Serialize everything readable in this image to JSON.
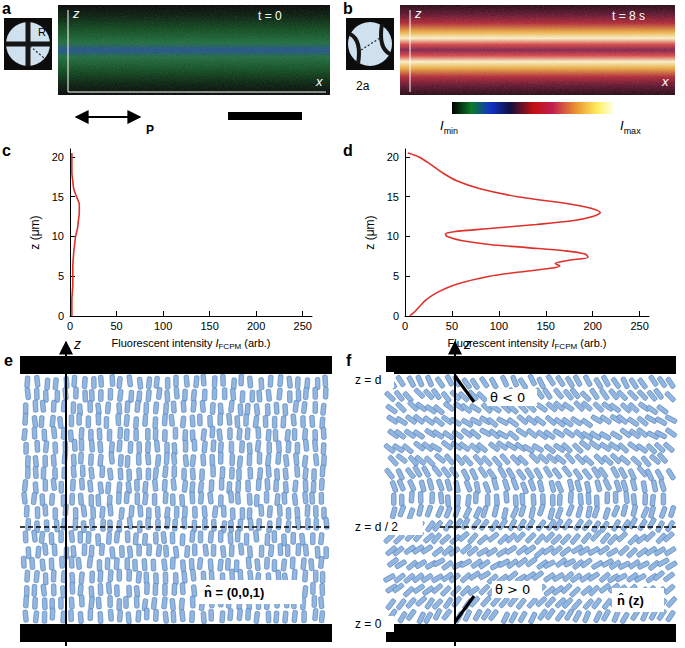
{
  "panels": {
    "a": {
      "label": "a",
      "axis_labels": {
        "vertical": "z",
        "horizontal": "x"
      },
      "time": "t = 0",
      "conoscope_label": "R",
      "polarizer_label": "P"
    },
    "b": {
      "label": "b",
      "axis_labels": {
        "vertical": "z",
        "horizontal": "x"
      },
      "time": "t = 8 s",
      "conoscope_label": "2a",
      "colorbar": {
        "min": {
          "symbol": "I",
          "sub": "min"
        },
        "max": {
          "symbol": "I",
          "sub": "max"
        }
      }
    },
    "e": {
      "label": "e",
      "axis_label": "z",
      "director_label": "n̂ = (0,0,1)"
    },
    "f": {
      "label": "f",
      "axis_label": "z",
      "level_labels": [
        "z = d",
        "z = d / 2",
        "z = 0"
      ],
      "angle_labels": [
        "θ < 0",
        "θ > 0"
      ],
      "director_label": "n̂ (z)"
    }
  },
  "chart_data": [
    {
      "type": "line",
      "label": "c",
      "xlabel": {
        "text": "Fluorescent intensity ",
        "symbol": "I",
        "sub": "FCPM",
        "unit": " (arb.)"
      },
      "ylabel": "z (μm)",
      "xlim": [
        0,
        260
      ],
      "xticks": [
        0,
        50,
        100,
        150,
        200,
        250
      ],
      "ylim": [
        0,
        21
      ],
      "yticks": [
        0,
        5,
        10,
        15,
        20
      ],
      "grid": false,
      "series": [
        {
          "color": "#e0302a",
          "x": [
            2,
            2,
            3,
            3,
            4,
            5,
            6,
            8,
            9,
            10,
            10,
            7,
            4,
            3,
            2,
            2,
            2
          ],
          "y": [
            0,
            2,
            4,
            6,
            8,
            9,
            10,
            11,
            12,
            13,
            14,
            15,
            16,
            17,
            18,
            20,
            20.5
          ]
        }
      ]
    },
    {
      "type": "line",
      "label": "d",
      "xlabel": {
        "text": "Fluorescent intensity ",
        "symbol": "I",
        "sub": "FCPM",
        "unit": " (arb.)"
      },
      "ylabel": "z (μm)",
      "xlim": [
        0,
        260
      ],
      "xticks": [
        0,
        50,
        100,
        150,
        200,
        250
      ],
      "ylim": [
        0,
        21
      ],
      "yticks": [
        0,
        5,
        10,
        15,
        20
      ],
      "grid": false,
      "series": [
        {
          "color": "#e0302a",
          "x": [
            5,
            10,
            14,
            18,
            22,
            35,
            55,
            90,
            120,
            155,
            165,
            160,
            175,
            195,
            192,
            170,
            130,
            90,
            60,
            45,
            43,
            52,
            90,
            140,
            180,
            200,
            208,
            200,
            180,
            120,
            80,
            55,
            40,
            28,
            15,
            3
          ],
          "y": [
            0,
            0.5,
            1,
            1.5,
            2,
            3,
            4,
            5,
            5.5,
            6,
            6.3,
            6.6,
            7,
            7.4,
            7.8,
            8.2,
            8.6,
            9,
            9.5,
            10,
            10.3,
            10.6,
            11,
            11.5,
            12,
            12.5,
            13,
            13.5,
            14,
            15,
            16,
            17,
            18,
            19,
            20,
            20.5
          ]
        }
      ]
    }
  ]
}
